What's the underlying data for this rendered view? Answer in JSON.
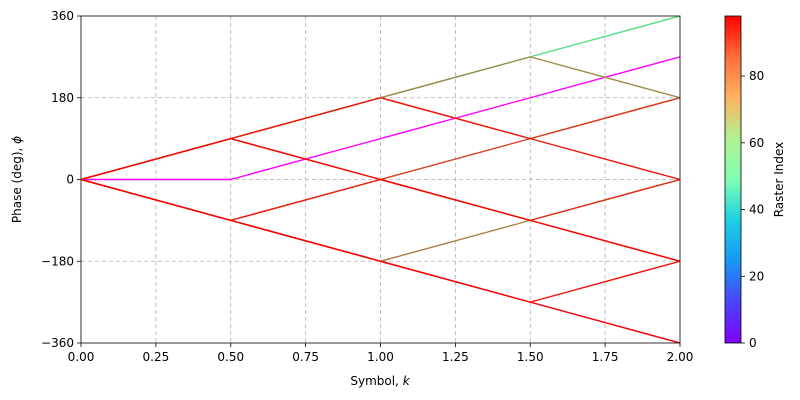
{
  "chart_data": {
    "type": "line",
    "title": "",
    "xlabel": "Symbol,",
    "xlabel_var": "k",
    "ylabel": "Phase (deg),",
    "ylabel_var": "ϕ",
    "xlim": [
      0,
      2
    ],
    "ylim": [
      -360,
      360
    ],
    "xticks": [
      0,
      0.25,
      0.5,
      0.75,
      1,
      1.25,
      1.5,
      1.75,
      2
    ],
    "xtick_labels": [
      "0.00",
      "0.25",
      "0.50",
      "0.75",
      "1.00",
      "1.25",
      "1.50",
      "1.75",
      "2.00"
    ],
    "yticks": [
      -360,
      -180,
      0,
      180,
      360
    ],
    "ytick_labels": [
      "−360",
      "−180",
      "0",
      "180",
      "360"
    ],
    "grid": true,
    "colorbar": {
      "label": "Raster Index",
      "range": [
        0,
        98
      ],
      "ticks": [
        0,
        20,
        40,
        60,
        80
      ],
      "tick_labels": [
        "0",
        "20",
        "40",
        "60",
        "80"
      ],
      "colormap": "rainbow"
    },
    "series": [
      {
        "index": 0,
        "x": [
          0,
          0.5,
          1,
          1.5,
          2
        ],
        "y": [
          0,
          0,
          90,
          180,
          270
        ]
      },
      {
        "index": 27,
        "x": [
          0,
          0.5,
          1,
          1.5,
          2
        ],
        "y": [
          0,
          -90,
          -180,
          -270,
          -360
        ]
      },
      {
        "index": 65,
        "x": [
          0,
          0.5,
          1,
          1.5,
          2
        ],
        "y": [
          0,
          90,
          180,
          270,
          360
        ]
      },
      {
        "index": 80,
        "x": [
          0,
          0.5,
          1,
          1.5,
          2
        ],
        "y": [
          0,
          90,
          180,
          270,
          180
        ]
      },
      {
        "index": 82,
        "x": [
          0,
          0.5,
          1,
          1.5,
          2
        ],
        "y": [
          0,
          -90,
          -180,
          -90,
          0
        ]
      },
      {
        "index": 88,
        "x": [
          0,
          0.5,
          1,
          1.5,
          2
        ],
        "y": [
          0,
          90,
          180,
          90,
          180
        ]
      },
      {
        "index": 90,
        "x": [
          0,
          0.5,
          1,
          1.5,
          2
        ],
        "y": [
          0,
          -90,
          0,
          90,
          180
        ]
      },
      {
        "index": 92,
        "x": [
          0,
          0.5,
          1,
          1.5,
          2
        ],
        "y": [
          0,
          90,
          0,
          -90,
          0
        ]
      },
      {
        "index": 94,
        "x": [
          0,
          0.5,
          1,
          1.5,
          2
        ],
        "y": [
          0,
          -90,
          0,
          -90,
          -180
        ]
      },
      {
        "index": 95,
        "x": [
          0,
          0.5,
          1,
          1.5,
          2
        ],
        "y": [
          0,
          90,
          180,
          90,
          0
        ]
      },
      {
        "index": 96,
        "x": [
          0,
          0.5,
          1,
          1.5,
          2
        ],
        "y": [
          0,
          -90,
          -180,
          -270,
          -180
        ]
      },
      {
        "index": 97,
        "x": [
          0,
          0.5,
          1,
          1.5,
          2
        ],
        "y": [
          0,
          90,
          0,
          -90,
          -180
        ]
      },
      {
        "index": 98,
        "x": [
          0,
          0.5,
          1,
          1.5,
          2
        ],
        "y": [
          0,
          -90,
          -180,
          -270,
          -360
        ]
      }
    ]
  }
}
